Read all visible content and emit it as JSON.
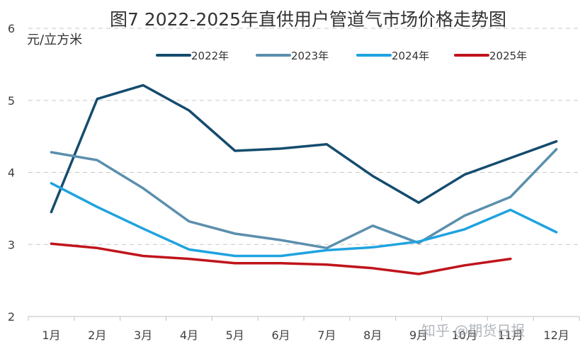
{
  "chart_data": {
    "type": "line",
    "title": "图7  2022-2025年直供用户管道气市场价格走势图",
    "xlabel": "",
    "ylabel": "元/立方米",
    "categories": [
      "1月",
      "2月",
      "3月",
      "4月",
      "5月",
      "6月",
      "7月",
      "8月",
      "9月",
      "10月",
      "11月",
      "12月"
    ],
    "ylim": [
      2,
      6
    ],
    "yticks": [
      2,
      3,
      4,
      5,
      6
    ],
    "grid": true,
    "legend_position": "top",
    "series": [
      {
        "name": "2022年",
        "color": "#154c6e",
        "values": [
          3.45,
          5.02,
          5.21,
          4.86,
          4.3,
          4.33,
          4.39,
          3.95,
          3.58,
          3.97,
          4.2,
          4.43
        ]
      },
      {
        "name": "2023年",
        "color": "#5b8fad",
        "values": [
          4.28,
          4.17,
          3.78,
          3.32,
          3.15,
          3.06,
          2.95,
          3.26,
          3.02,
          3.4,
          3.66,
          4.32
        ]
      },
      {
        "name": "2024年",
        "color": "#1fa3df",
        "values": [
          3.85,
          3.52,
          3.22,
          2.93,
          2.84,
          2.84,
          2.92,
          2.96,
          3.04,
          3.21,
          3.48,
          3.17
        ]
      },
      {
        "name": "2025年",
        "color": "#c0141b",
        "values": [
          3.01,
          2.95,
          2.84,
          2.8,
          2.74,
          2.74,
          2.72,
          2.67,
          2.59,
          2.71,
          2.8,
          null
        ]
      }
    ]
  },
  "watermark": "知乎 @期货日报"
}
